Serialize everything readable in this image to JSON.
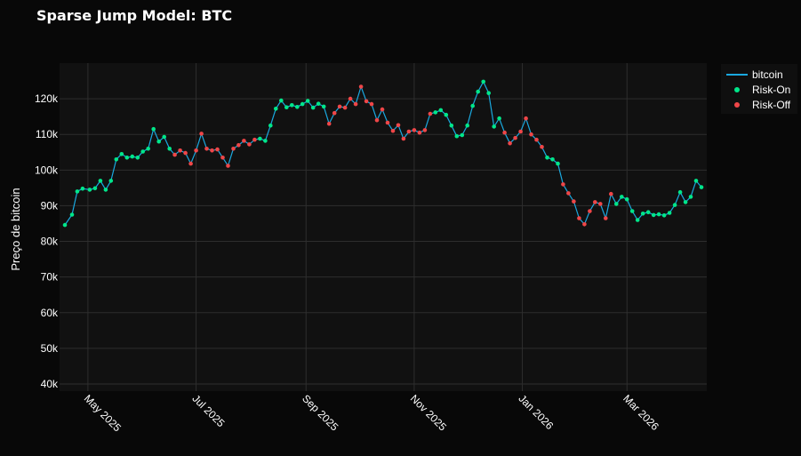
{
  "chart_data": {
    "type": "line",
    "title": "Sparse Jump Model: BTC",
    "xlabel": "",
    "ylabel": "Preço de bitcoin",
    "x_range": [
      "2025-04-15",
      "2026-04-15"
    ],
    "ylim": [
      38000,
      130000
    ],
    "y_ticks": [
      40000,
      50000,
      60000,
      70000,
      80000,
      90000,
      100000,
      110000,
      120000
    ],
    "y_tick_labels": [
      "40k",
      "50k",
      "60k",
      "70k",
      "80k",
      "90k",
      "100k",
      "110k",
      "120k"
    ],
    "x_ticks": [
      "2025-05-01",
      "2025-07-01",
      "2025-09-01",
      "2025-11-01",
      "2026-01-01",
      "2026-03-01"
    ],
    "x_tick_labels": [
      "May 2025",
      "Jul 2025",
      "Sep 2025",
      "Nov 2025",
      "Jan 2026",
      "Mar 2026"
    ],
    "grid": true,
    "legend_position": "top-right",
    "series": [
      {
        "name": "bitcoin",
        "mode": "line",
        "color": "#1aa9e0"
      },
      {
        "name": "Risk-On",
        "mode": "markers",
        "color": "#00e68a"
      },
      {
        "name": "Risk-Off",
        "mode": "markers",
        "color": "#ef4648"
      }
    ],
    "points": [
      [
        "2025-04-18",
        84600,
        "on"
      ],
      [
        "2025-04-22",
        87500,
        "on"
      ],
      [
        "2025-04-25",
        94000,
        "on"
      ],
      [
        "2025-04-28",
        94800,
        "on"
      ],
      [
        "2025-05-02",
        94500,
        "on"
      ],
      [
        "2025-05-05",
        94900,
        "on"
      ],
      [
        "2025-05-08",
        97000,
        "on"
      ],
      [
        "2025-05-11",
        94500,
        "on"
      ],
      [
        "2025-05-14",
        97000,
        "on"
      ],
      [
        "2025-05-17",
        103000,
        "on"
      ],
      [
        "2025-05-20",
        104500,
        "on"
      ],
      [
        "2025-05-23",
        103500,
        "on"
      ],
      [
        "2025-05-26",
        103800,
        "on"
      ],
      [
        "2025-05-29",
        103500,
        "on"
      ],
      [
        "2025-06-01",
        105200,
        "on"
      ],
      [
        "2025-06-04",
        106000,
        "on"
      ],
      [
        "2025-06-07",
        111500,
        "on"
      ],
      [
        "2025-06-10",
        108000,
        "on"
      ],
      [
        "2025-06-13",
        109300,
        "on"
      ],
      [
        "2025-06-16",
        106000,
        "on"
      ],
      [
        "2025-06-19",
        104300,
        "off"
      ],
      [
        "2025-06-22",
        105500,
        "off"
      ],
      [
        "2025-06-25",
        104800,
        "off"
      ],
      [
        "2025-06-28",
        101800,
        "off"
      ],
      [
        "2025-07-01",
        105500,
        "off"
      ],
      [
        "2025-07-04",
        110200,
        "off"
      ],
      [
        "2025-07-07",
        106000,
        "off"
      ],
      [
        "2025-07-10",
        105500,
        "off"
      ],
      [
        "2025-07-13",
        105800,
        "off"
      ],
      [
        "2025-07-16",
        103500,
        "off"
      ],
      [
        "2025-07-19",
        101200,
        "off"
      ],
      [
        "2025-07-22",
        106000,
        "off"
      ],
      [
        "2025-07-25",
        107000,
        "off"
      ],
      [
        "2025-07-28",
        108200,
        "off"
      ],
      [
        "2025-07-31",
        107200,
        "off"
      ],
      [
        "2025-08-03",
        108500,
        "off"
      ],
      [
        "2025-08-06",
        108800,
        "on"
      ],
      [
        "2025-08-09",
        108200,
        "on"
      ],
      [
        "2025-08-12",
        112500,
        "on"
      ],
      [
        "2025-08-15",
        117200,
        "on"
      ],
      [
        "2025-08-18",
        119500,
        "on"
      ],
      [
        "2025-08-21",
        117600,
        "on"
      ],
      [
        "2025-08-24",
        118200,
        "on"
      ],
      [
        "2025-08-27",
        117700,
        "on"
      ],
      [
        "2025-08-30",
        118500,
        "on"
      ],
      [
        "2025-09-02",
        119400,
        "on"
      ],
      [
        "2025-09-05",
        117500,
        "on"
      ],
      [
        "2025-09-08",
        118600,
        "on"
      ],
      [
        "2025-09-11",
        117800,
        "on"
      ],
      [
        "2025-09-14",
        113000,
        "off"
      ],
      [
        "2025-09-17",
        116000,
        "off"
      ],
      [
        "2025-09-20",
        117800,
        "off"
      ],
      [
        "2025-09-23",
        117500,
        "off"
      ],
      [
        "2025-09-26",
        120000,
        "off"
      ],
      [
        "2025-09-29",
        118500,
        "off"
      ],
      [
        "2025-10-02",
        123400,
        "off"
      ],
      [
        "2025-10-05",
        119300,
        "off"
      ],
      [
        "2025-10-08",
        118500,
        "off"
      ],
      [
        "2025-10-11",
        114000,
        "off"
      ],
      [
        "2025-10-14",
        117000,
        "off"
      ],
      [
        "2025-10-17",
        113300,
        "off"
      ],
      [
        "2025-10-20",
        111000,
        "off"
      ],
      [
        "2025-10-23",
        112600,
        "off"
      ],
      [
        "2025-10-26",
        108800,
        "off"
      ],
      [
        "2025-10-29",
        110800,
        "off"
      ],
      [
        "2025-11-01",
        111200,
        "off"
      ],
      [
        "2025-11-04",
        110500,
        "off"
      ],
      [
        "2025-11-07",
        111200,
        "off"
      ],
      [
        "2025-11-10",
        115800,
        "off"
      ],
      [
        "2025-11-13",
        116200,
        "on"
      ],
      [
        "2025-11-16",
        116800,
        "on"
      ],
      [
        "2025-11-19",
        115500,
        "on"
      ],
      [
        "2025-11-22",
        112500,
        "on"
      ],
      [
        "2025-11-25",
        109500,
        "on"
      ],
      [
        "2025-11-28",
        109800,
        "on"
      ],
      [
        "2025-12-01",
        112500,
        "on"
      ],
      [
        "2025-12-04",
        118000,
        "on"
      ],
      [
        "2025-12-07",
        122000,
        "on"
      ],
      [
        "2025-12-10",
        124800,
        "on"
      ],
      [
        "2025-12-13",
        121600,
        "on"
      ],
      [
        "2025-12-16",
        112200,
        "on"
      ],
      [
        "2025-12-19",
        114500,
        "on"
      ],
      [
        "2025-12-22",
        110500,
        "off"
      ],
      [
        "2025-12-25",
        107500,
        "off"
      ],
      [
        "2025-12-28",
        109000,
        "off"
      ],
      [
        "2025-12-31",
        110800,
        "off"
      ],
      [
        "2026-01-03",
        114500,
        "off"
      ],
      [
        "2026-01-06",
        110000,
        "off"
      ],
      [
        "2026-01-09",
        108500,
        "off"
      ],
      [
        "2026-01-12",
        106500,
        "off"
      ],
      [
        "2026-01-15",
        103500,
        "on"
      ],
      [
        "2026-01-18",
        103000,
        "on"
      ],
      [
        "2026-01-21",
        101800,
        "on"
      ],
      [
        "2026-01-24",
        96000,
        "off"
      ],
      [
        "2026-01-27",
        93500,
        "off"
      ],
      [
        "2026-01-30",
        91200,
        "off"
      ],
      [
        "2026-02-02",
        86500,
        "off"
      ],
      [
        "2026-02-05",
        84800,
        "off"
      ],
      [
        "2026-02-08",
        88500,
        "off"
      ],
      [
        "2026-02-11",
        91000,
        "off"
      ],
      [
        "2026-02-14",
        90500,
        "off"
      ],
      [
        "2026-02-17",
        86500,
        "off"
      ],
      [
        "2026-02-20",
        93300,
        "off"
      ],
      [
        "2026-02-23",
        90500,
        "on"
      ],
      [
        "2026-02-26",
        92500,
        "on"
      ],
      [
        "2026-03-01",
        91800,
        "on"
      ],
      [
        "2026-03-04",
        88500,
        "on"
      ],
      [
        "2026-03-07",
        86000,
        "on"
      ],
      [
        "2026-03-10",
        87800,
        "on"
      ],
      [
        "2026-03-13",
        88200,
        "on"
      ],
      [
        "2026-03-16",
        87400,
        "on"
      ],
      [
        "2026-03-19",
        87600,
        "on"
      ],
      [
        "2026-03-22",
        87300,
        "on"
      ],
      [
        "2026-03-25",
        88000,
        "on"
      ],
      [
        "2026-03-28",
        90200,
        "on"
      ],
      [
        "2026-03-31",
        93800,
        "on"
      ],
      [
        "2026-04-03",
        91000,
        "on"
      ],
      [
        "2026-04-06",
        92500,
        "on"
      ],
      [
        "2026-04-09",
        97000,
        "on"
      ],
      [
        "2026-04-12",
        95200,
        "on"
      ]
    ]
  }
}
